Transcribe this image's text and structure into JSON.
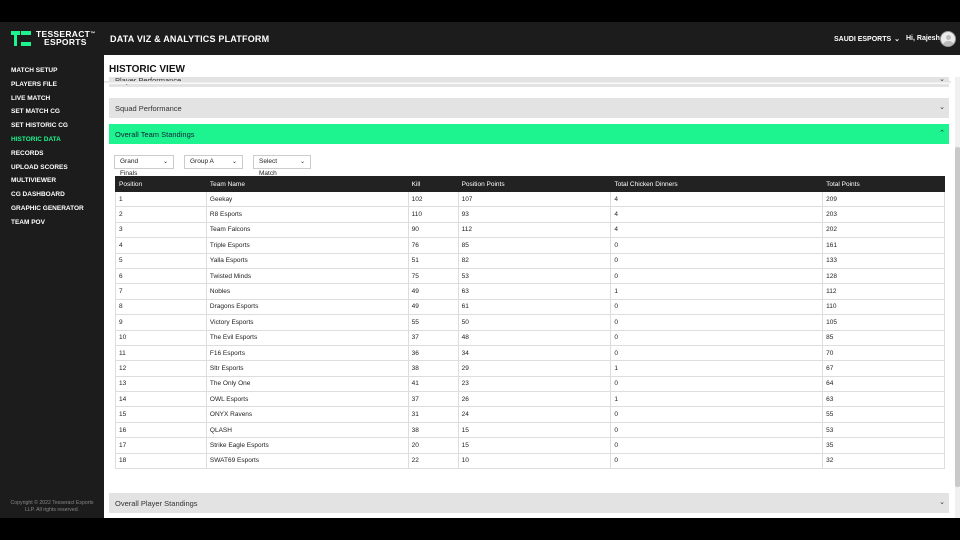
{
  "header": {
    "logo_line1": "TESSERACT",
    "logo_line2": "ESPORTS",
    "trademark": "™",
    "app_title": "DATA VIZ & ANALYTICS PLATFORM",
    "org_selector": "SAUDI ESPORTS",
    "greeting": "Hi, Rajesh"
  },
  "sidebar": {
    "items": [
      {
        "label": "MATCH SETUP"
      },
      {
        "label": "PLAYERS FILE"
      },
      {
        "label": "LIVE MATCH"
      },
      {
        "label": "SET MATCH CG"
      },
      {
        "label": "SET HISTORIC CG"
      },
      {
        "label": "HISTORIC DATA",
        "active": true
      },
      {
        "label": "RECORDS"
      },
      {
        "label": "UPLOAD SCORES"
      },
      {
        "label": "MULTIVIEWER"
      },
      {
        "label": "CG DASHBOARD"
      },
      {
        "label": "GRAPHIC GENERATOR"
      },
      {
        "label": "TEAM POV"
      }
    ],
    "copyright_line1": "Copyright © 2022 Tesseract Esports",
    "copyright_line2": "LLP. All rights reserved."
  },
  "main": {
    "title": "HISTORIC VIEW",
    "accordions": {
      "player_performance": "Player Performance",
      "squad_performance": "Squad Performance",
      "overall_team_standings": "Overall Team Standings",
      "overall_player_standings": "Overall Player Standings"
    },
    "filters": {
      "stage": "Grand Finals",
      "group": "Group A",
      "match": "Select Match"
    },
    "table": {
      "columns": [
        "Position",
        "Team Name",
        "Kill",
        "Position Points",
        "Total Chicken Dinners",
        "Total Points"
      ],
      "rows": [
        [
          "1",
          "Geekay",
          "102",
          "107",
          "4",
          "209"
        ],
        [
          "2",
          "R8 Esports",
          "110",
          "93",
          "4",
          "203"
        ],
        [
          "3",
          "Team Falcons",
          "90",
          "112",
          "4",
          "202"
        ],
        [
          "4",
          "Triple Esports",
          "76",
          "85",
          "0",
          "161"
        ],
        [
          "5",
          "Yalla Esports",
          "51",
          "82",
          "0",
          "133"
        ],
        [
          "6",
          "Twisted Minds",
          "75",
          "53",
          "0",
          "128"
        ],
        [
          "7",
          "Nobles",
          "49",
          "63",
          "1",
          "112"
        ],
        [
          "8",
          "Dragons Esports",
          "49",
          "61",
          "0",
          "110"
        ],
        [
          "9",
          "Victory Esports",
          "55",
          "50",
          "0",
          "105"
        ],
        [
          "10",
          "The Evil Esports",
          "37",
          "48",
          "0",
          "85"
        ],
        [
          "11",
          "F16 Esports",
          "36",
          "34",
          "0",
          "70"
        ],
        [
          "12",
          "Sltr Esports",
          "38",
          "29",
          "1",
          "67"
        ],
        [
          "13",
          "The Only One",
          "41",
          "23",
          "0",
          "64"
        ],
        [
          "14",
          "OWL Esports",
          "37",
          "26",
          "1",
          "63"
        ],
        [
          "15",
          "ONYX Ravens",
          "31",
          "24",
          "0",
          "55"
        ],
        [
          "16",
          "QLASH",
          "38",
          "15",
          "0",
          "53"
        ],
        [
          "17",
          "Strike Eagle Esports",
          "20",
          "15",
          "0",
          "35"
        ],
        [
          "18",
          "SWAT69 Esports",
          "22",
          "10",
          "0",
          "32"
        ]
      ]
    }
  },
  "colors": {
    "accent": "#1df48f",
    "topbar": "#1c1c1c",
    "accordion": "#e3e3e3",
    "table_header": "#222222"
  },
  "icons": {
    "chevron_down": "chevron-down-icon",
    "chevron_up": "chevron-up-icon",
    "avatar": "user-avatar-icon",
    "logo": "tesseract-logo-icon"
  }
}
